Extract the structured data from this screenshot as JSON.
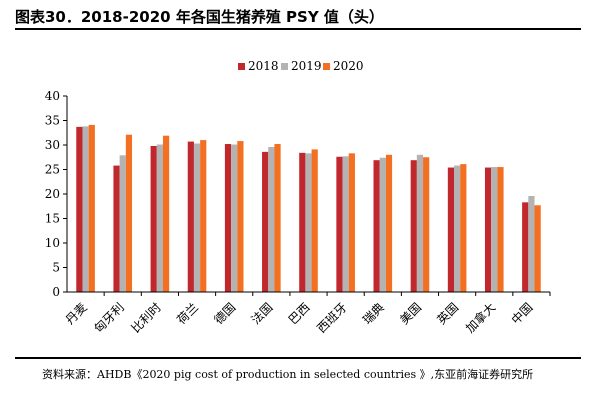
{
  "title": "图表30．2018-2020 年各国生猪养殖 PSY 值（头）",
  "source": "资料来源：AHDB《2020 pig cost of production in selected countries 》,东亚前海证券研究所",
  "colors": {
    "2018": "#C0282D",
    "2019": "#B3B3B3",
    "2020": "#F36F21"
  },
  "chart_data": {
    "type": "bar",
    "title": "",
    "xlabel": "",
    "ylabel": "",
    "ylim": [
      0,
      40
    ],
    "yticks": [
      0,
      5,
      10,
      15,
      20,
      25,
      30,
      35,
      40
    ],
    "grid": false,
    "legend_position": "top",
    "categories": [
      "丹麦",
      "匈牙利",
      "比利时",
      "荷兰",
      "德国",
      "法国",
      "巴西",
      "西班牙",
      "瑞典",
      "美国",
      "英国",
      "加拿大",
      "中国"
    ],
    "series": [
      {
        "name": "2018",
        "values": [
          33.7,
          25.8,
          29.8,
          30.7,
          30.2,
          28.6,
          28.4,
          27.6,
          26.9,
          26.9,
          25.4,
          25.4,
          18.3
        ]
      },
      {
        "name": "2019",
        "values": [
          33.8,
          27.9,
          30.1,
          30.3,
          30.1,
          29.6,
          28.3,
          27.7,
          27.4,
          28.0,
          25.8,
          25.5,
          19.6
        ]
      },
      {
        "name": "2020",
        "values": [
          34.1,
          32.1,
          31.9,
          31.0,
          30.8,
          30.2,
          29.1,
          28.3,
          28.0,
          27.5,
          26.1,
          25.5,
          17.7
        ]
      }
    ]
  }
}
